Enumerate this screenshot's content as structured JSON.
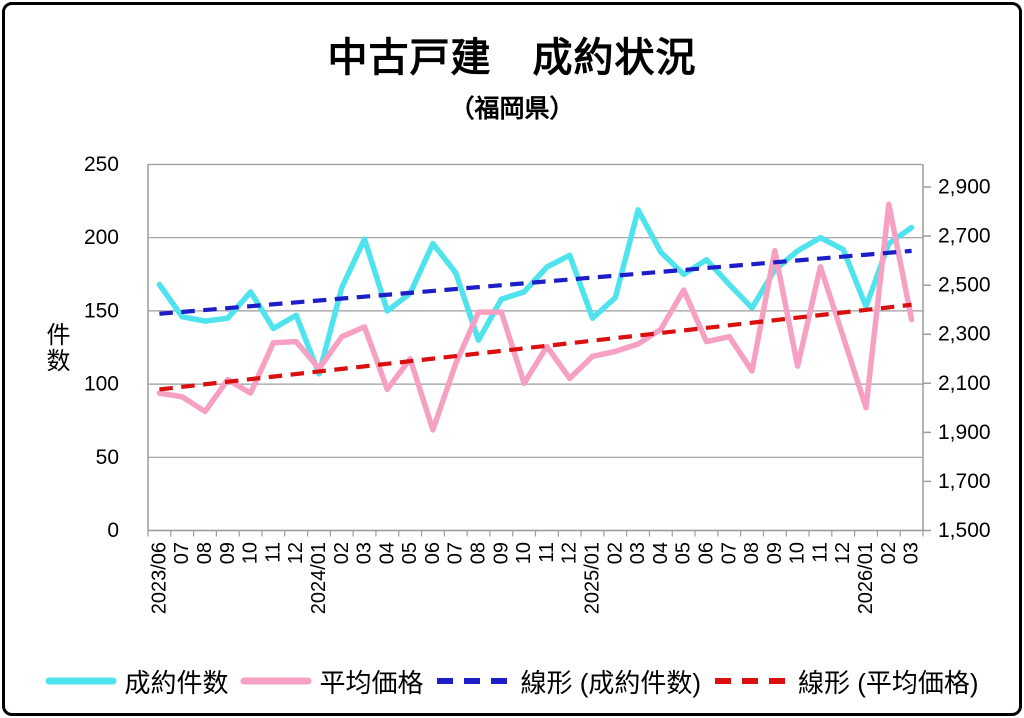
{
  "title": "中古戸建　成約状況",
  "subtitle": "（福岡県）",
  "chart_data": {
    "type": "line",
    "title": "中古戸建　成約状況（福岡県）",
    "categories": [
      "2023/06",
      "07",
      "08",
      "09",
      "10",
      "11",
      "12",
      "2024/01",
      "02",
      "03",
      "04",
      "05",
      "06",
      "07",
      "08",
      "09",
      "10",
      "11",
      "12",
      "2025/01",
      "02",
      "03",
      "04",
      "05",
      "06",
      "07",
      "08",
      "09",
      "10",
      "11",
      "12",
      "2026/01",
      "02",
      "03"
    ],
    "series": [
      {
        "name": "成約件数",
        "axis": "left",
        "style": "solid",
        "color": "#4fe3ee",
        "values": [
          168,
          146,
          143,
          145,
          163,
          138,
          147,
          107,
          166,
          199,
          150,
          162,
          196,
          176,
          130,
          158,
          163,
          180,
          188,
          145,
          159,
          219,
          190,
          175,
          185,
          168,
          152,
          178,
          191,
          200,
          192,
          153,
          196,
          207
        ]
      },
      {
        "name": "平均価格",
        "axis": "right",
        "style": "solid",
        "color": "#f6a1c3",
        "values": [
          2060,
          2045,
          1985,
          2115,
          2060,
          2265,
          2270,
          2160,
          2290,
          2330,
          2075,
          2200,
          1910,
          2180,
          2390,
          2390,
          2100,
          2250,
          2120,
          2210,
          2230,
          2260,
          2320,
          2480,
          2270,
          2290,
          2150,
          2640,
          2170,
          2575,
          2290,
          2000,
          2830,
          2360
        ]
      },
      {
        "name": "線形 (成約件数)",
        "axis": "left",
        "style": "dashed",
        "color": "#1e1ec8",
        "trend_endpoints": [
          148,
          191
        ]
      },
      {
        "name": "線形 (平均価格)",
        "axis": "right",
        "style": "dashed",
        "color": "#da1010",
        "trend_endpoints": [
          2075,
          2420
        ]
      }
    ],
    "left_axis": {
      "label": "件数",
      "tick_labels": [
        "0",
        "50",
        "100",
        "150",
        "200",
        "250"
      ],
      "tick_values": [
        0,
        50,
        100,
        150,
        200,
        250
      ],
      "range": [
        0,
        250
      ]
    },
    "right_axis": {
      "label": "",
      "tick_labels": [
        "1,500",
        "1,700",
        "1,900",
        "2,100",
        "2,300",
        "2,500",
        "2,700",
        "2,900"
      ],
      "tick_values": [
        1500,
        1700,
        1900,
        2100,
        2300,
        2500,
        2700,
        2900
      ],
      "range": [
        1500,
        2900
      ]
    },
    "grid": true,
    "legend_position": "bottom",
    "colors": {
      "grid": "#9c9c9c",
      "text": "#000000",
      "background": "#ffffff"
    }
  },
  "legend": {
    "items": [
      {
        "label": "成約件数",
        "color": "#4fe3ee",
        "dashed": false
      },
      {
        "label": "平均価格",
        "color": "#f6a1c3",
        "dashed": false
      },
      {
        "label": "線形 (成約件数)",
        "color": "#1e1ec8",
        "dashed": true
      },
      {
        "label": "線形 (平均価格)",
        "color": "#da1010",
        "dashed": true
      }
    ]
  }
}
